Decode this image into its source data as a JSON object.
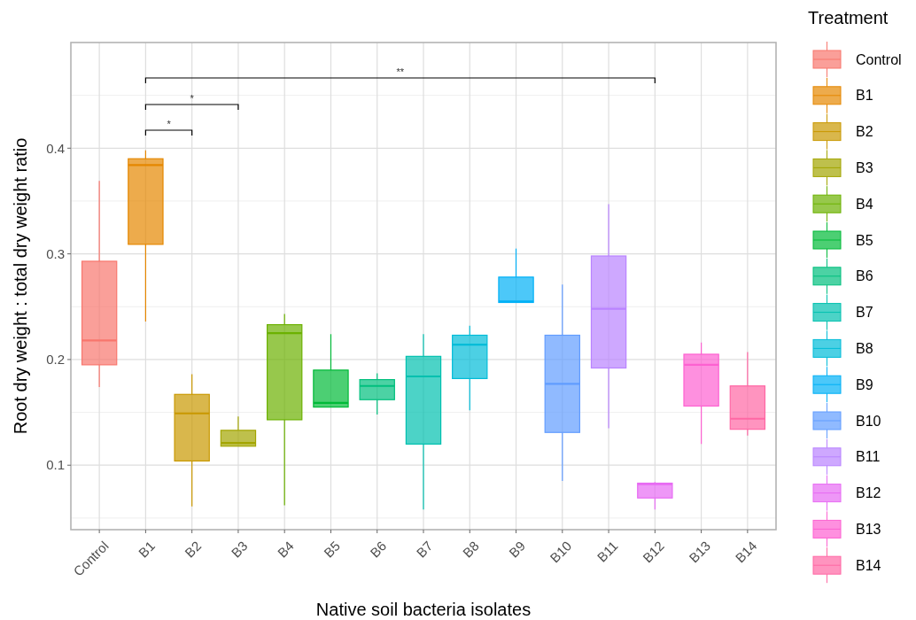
{
  "chart_data": {
    "type": "box",
    "xlabel": "Native soil bacteria isolates",
    "ylabel": "Root dry weight : total dry weight ratio",
    "legend_title": "Treatment",
    "legend": "right",
    "grid": true,
    "categories": [
      "Control",
      "B1",
      "B2",
      "B3",
      "B4",
      "B5",
      "B6",
      "B7",
      "B8",
      "B9",
      "B10",
      "B11",
      "B12",
      "B13",
      "B14"
    ],
    "series": [
      {
        "name": "Control",
        "color": "#F8766D",
        "boxes": [
          {
            "low": 0.174,
            "q1": 0.195,
            "median": 0.218,
            "q3": 0.293,
            "high": 0.369
          },
          null,
          null,
          null,
          null,
          null,
          null,
          null,
          null,
          null,
          null,
          null,
          null,
          null,
          null
        ]
      },
      {
        "name": "B1",
        "color": "#E58700",
        "boxes": [
          null,
          {
            "low": 0.236,
            "q1": 0.309,
            "median": 0.384,
            "q3": 0.39,
            "high": 0.398
          },
          null,
          null,
          null,
          null,
          null,
          null,
          null,
          null,
          null,
          null,
          null,
          null,
          null
        ]
      },
      {
        "name": "B2",
        "color": "#C99800",
        "boxes": [
          null,
          null,
          {
            "low": 0.061,
            "q1": 0.104,
            "median": 0.149,
            "q3": 0.167,
            "high": 0.186
          },
          null,
          null,
          null,
          null,
          null,
          null,
          null,
          null,
          null,
          null,
          null,
          null
        ]
      },
      {
        "name": "B3",
        "color": "#A3A500",
        "boxes": [
          null,
          null,
          null,
          {
            "low": 0.118,
            "q1": 0.118,
            "median": 0.121,
            "q3": 0.133,
            "high": 0.146
          },
          null,
          null,
          null,
          null,
          null,
          null,
          null,
          null,
          null,
          null,
          null
        ]
      },
      {
        "name": "B4",
        "color": "#6BB100",
        "boxes": [
          null,
          null,
          null,
          null,
          {
            "low": 0.062,
            "q1": 0.143,
            "median": 0.225,
            "q3": 0.233,
            "high": 0.243
          },
          null,
          null,
          null,
          null,
          null,
          null,
          null,
          null,
          null,
          null
        ]
      },
      {
        "name": "B5",
        "color": "#00BA38",
        "boxes": [
          null,
          null,
          null,
          null,
          null,
          {
            "low": 0.155,
            "q1": 0.155,
            "median": 0.159,
            "q3": 0.19,
            "high": 0.224
          },
          null,
          null,
          null,
          null,
          null,
          null,
          null,
          null,
          null
        ]
      },
      {
        "name": "B6",
        "color": "#00BF7D",
        "boxes": [
          null,
          null,
          null,
          null,
          null,
          null,
          {
            "low": 0.148,
            "q1": 0.162,
            "median": 0.175,
            "q3": 0.181,
            "high": 0.187
          },
          null,
          null,
          null,
          null,
          null,
          null,
          null,
          null
        ]
      },
      {
        "name": "B7",
        "color": "#00C0AF",
        "boxes": [
          null,
          null,
          null,
          null,
          null,
          null,
          null,
          {
            "low": 0.058,
            "q1": 0.12,
            "median": 0.184,
            "q3": 0.203,
            "high": 0.224
          },
          null,
          null,
          null,
          null,
          null,
          null,
          null
        ]
      },
      {
        "name": "B8",
        "color": "#00BCD8",
        "boxes": [
          null,
          null,
          null,
          null,
          null,
          null,
          null,
          null,
          {
            "low": 0.152,
            "q1": 0.182,
            "median": 0.214,
            "q3": 0.223,
            "high": 0.232
          },
          null,
          null,
          null,
          null,
          null,
          null
        ]
      },
      {
        "name": "B9",
        "color": "#00B0F6",
        "boxes": [
          null,
          null,
          null,
          null,
          null,
          null,
          null,
          null,
          null,
          {
            "low": 0.254,
            "q1": 0.254,
            "median": 0.255,
            "q3": 0.278,
            "high": 0.305
          },
          null,
          null,
          null,
          null,
          null
        ]
      },
      {
        "name": "B10",
        "color": "#619CFF",
        "boxes": [
          null,
          null,
          null,
          null,
          null,
          null,
          null,
          null,
          null,
          null,
          {
            "low": 0.085,
            "q1": 0.131,
            "median": 0.177,
            "q3": 0.223,
            "high": 0.271
          },
          null,
          null,
          null,
          null
        ]
      },
      {
        "name": "B11",
        "color": "#B983FF",
        "boxes": [
          null,
          null,
          null,
          null,
          null,
          null,
          null,
          null,
          null,
          null,
          null,
          {
            "low": 0.135,
            "q1": 0.192,
            "median": 0.248,
            "q3": 0.298,
            "high": 0.347
          },
          null,
          null,
          null
        ]
      },
      {
        "name": "B12",
        "color": "#E76BF3",
        "boxes": [
          null,
          null,
          null,
          null,
          null,
          null,
          null,
          null,
          null,
          null,
          null,
          null,
          {
            "low": 0.058,
            "q1": 0.069,
            "median": 0.082,
            "q3": 0.083,
            "high": 0.084
          },
          null,
          null
        ]
      },
      {
        "name": "B13",
        "color": "#FD61D1",
        "boxes": [
          null,
          null,
          null,
          null,
          null,
          null,
          null,
          null,
          null,
          null,
          null,
          null,
          null,
          {
            "low": 0.12,
            "q1": 0.156,
            "median": 0.195,
            "q3": 0.205,
            "high": 0.216
          },
          null
        ]
      },
      {
        "name": "B14",
        "color": "#FF67A4",
        "boxes": [
          null,
          null,
          null,
          null,
          null,
          null,
          null,
          null,
          null,
          null,
          null,
          null,
          null,
          null,
          {
            "low": 0.128,
            "q1": 0.134,
            "median": 0.144,
            "q3": 0.175,
            "high": 0.207
          }
        ]
      }
    ],
    "ylim": [
      0.039,
      0.5
    ],
    "yticks": [
      0.1,
      0.2,
      0.3,
      0.4
    ],
    "annotations": [
      "*",
      "*",
      "**"
    ]
  }
}
